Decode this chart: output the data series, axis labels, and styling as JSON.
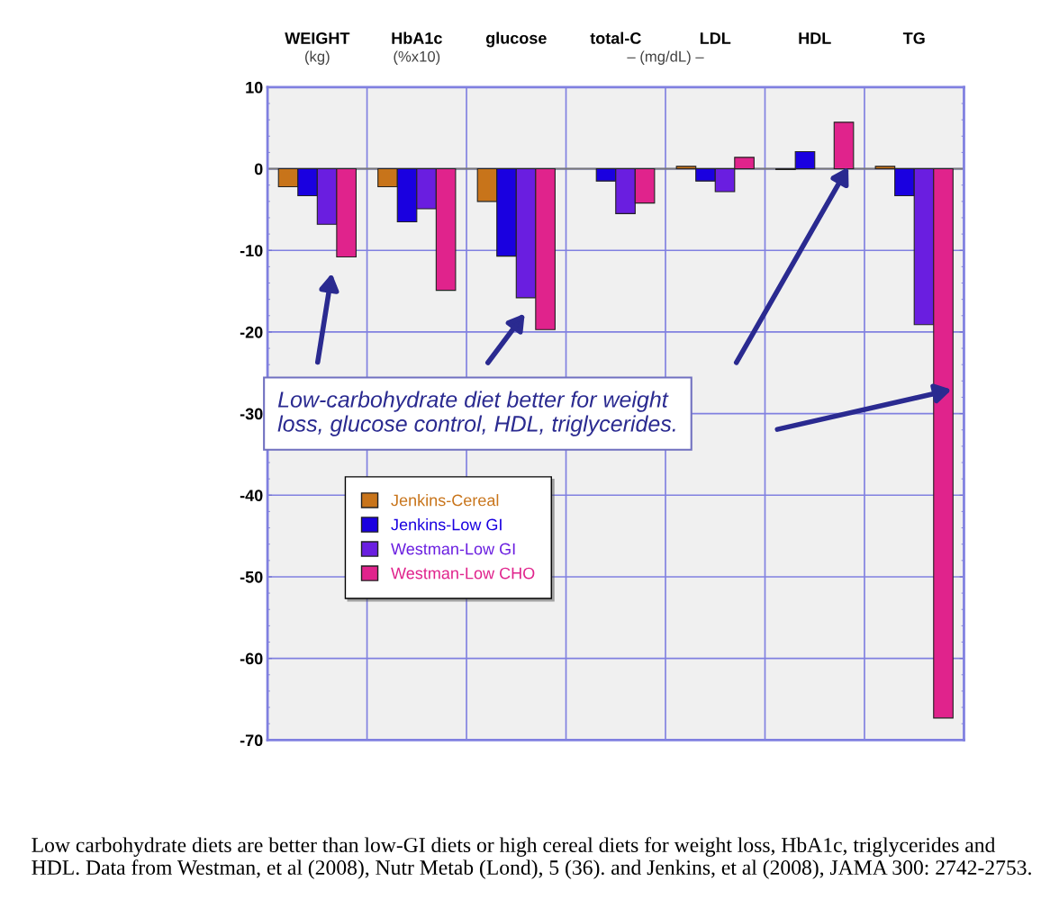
{
  "chart_data": {
    "type": "bar",
    "categories": [
      "WEIGHT",
      "HbA1c",
      "glucose",
      "total-C",
      "LDL",
      "HDL",
      "TG"
    ],
    "series": [
      {
        "name": "Jenkins-Cereal",
        "color": "#c8741a",
        "values": [
          -2.2,
          -2.2,
          -4.0,
          null,
          0.3,
          -0.1,
          0.3
        ]
      },
      {
        "name": "Jenkins-Low GI",
        "color": "#1a00e0",
        "values": [
          -3.3,
          -6.5,
          -10.7,
          -1.5,
          -1.5,
          2.1,
          -3.3
        ]
      },
      {
        "name": "Westman-Low GI",
        "color": "#6a1ee0",
        "values": [
          -6.8,
          -4.9,
          -15.8,
          -5.5,
          -2.8,
          null,
          -19.1
        ]
      },
      {
        "name": "Westman-Low CHO",
        "color": "#e0238c",
        "values": [
          -10.8,
          -14.9,
          -19.7,
          -4.2,
          1.4,
          5.7,
          -67.3
        ]
      }
    ],
    "ylim": [
      -70,
      10
    ],
    "yticks": [
      10,
      0,
      -10,
      -20,
      -30,
      -40,
      -50,
      -60,
      -70
    ],
    "grid": true,
    "legend": "center left",
    "annotations": [
      "(kg)",
      "(%x10)",
      "– (mg/dL) –",
      "Low-carbohydrate diet better for weight\nloss, glucose control, HDL, triglycerides.",
      "Low carbohydrate diets are better than low-GI diets or high cereal diets for weight loss, HbA1c, triglycerides and HDL. Data from Westman, et al (2008), Nutr Metab (Lond), 5 (36). and Jenkins, et al (2008), JAMA 300: 2742-2753."
    ]
  }
}
